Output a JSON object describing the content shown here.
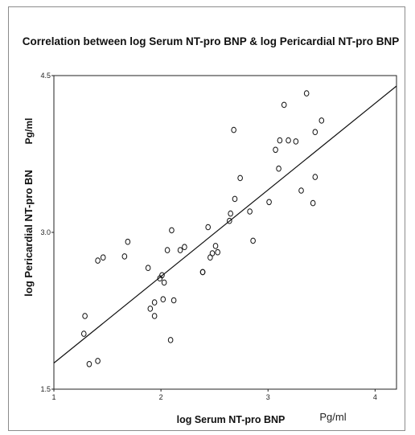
{
  "chart_data": {
    "type": "scatter",
    "title": "Correlation between log Serum NT-pro BNP & log Pericardial NT-pro BNP",
    "xlabel": "log Serum NT-pro BNP",
    "ylabel": "log Pericardial NT-pro BN",
    "x_unit": "Pg/ml",
    "y_unit": "Pg/ml",
    "xlim": [
      1,
      4.2
    ],
    "ylim": [
      1.5,
      4.5
    ],
    "x_ticks": [
      "1",
      "2",
      "3",
      "4"
    ],
    "y_ticks": [
      "1.5",
      "3.0",
      "4.5"
    ],
    "grid": false,
    "fit_line": {
      "x": [
        1,
        4.2
      ],
      "y": [
        1.75,
        4.4
      ]
    },
    "points": [
      {
        "x": 1.29,
        "y": 2.2
      },
      {
        "x": 1.28,
        "y": 2.03
      },
      {
        "x": 1.33,
        "y": 1.74
      },
      {
        "x": 1.41,
        "y": 1.77
      },
      {
        "x": 1.41,
        "y": 2.73
      },
      {
        "x": 1.46,
        "y": 2.76
      },
      {
        "x": 1.66,
        "y": 2.77
      },
      {
        "x": 1.69,
        "y": 2.91
      },
      {
        "x": 1.88,
        "y": 2.66
      },
      {
        "x": 1.9,
        "y": 2.27
      },
      {
        "x": 1.94,
        "y": 2.33
      },
      {
        "x": 1.94,
        "y": 2.2
      },
      {
        "x": 1.99,
        "y": 2.56
      },
      {
        "x": 2.01,
        "y": 2.59
      },
      {
        "x": 2.02,
        "y": 2.36
      },
      {
        "x": 2.03,
        "y": 2.52
      },
      {
        "x": 2.06,
        "y": 2.83
      },
      {
        "x": 2.09,
        "y": 1.97
      },
      {
        "x": 2.1,
        "y": 3.02
      },
      {
        "x": 2.12,
        "y": 2.35
      },
      {
        "x": 2.18,
        "y": 2.83
      },
      {
        "x": 2.22,
        "y": 2.86
      },
      {
        "x": 2.39,
        "y": 2.62
      },
      {
        "x": 2.39,
        "y": 2.62
      },
      {
        "x": 2.44,
        "y": 3.05
      },
      {
        "x": 2.46,
        "y": 2.76
      },
      {
        "x": 2.48,
        "y": 2.8
      },
      {
        "x": 2.51,
        "y": 2.87
      },
      {
        "x": 2.53,
        "y": 2.81
      },
      {
        "x": 2.64,
        "y": 3.11
      },
      {
        "x": 2.65,
        "y": 3.18
      },
      {
        "x": 2.68,
        "y": 3.98
      },
      {
        "x": 2.69,
        "y": 3.32
      },
      {
        "x": 2.74,
        "y": 3.52
      },
      {
        "x": 2.83,
        "y": 3.2
      },
      {
        "x": 2.86,
        "y": 2.92
      },
      {
        "x": 3.01,
        "y": 3.29
      },
      {
        "x": 3.07,
        "y": 3.79
      },
      {
        "x": 3.1,
        "y": 3.61
      },
      {
        "x": 3.11,
        "y": 3.88
      },
      {
        "x": 3.15,
        "y": 4.22
      },
      {
        "x": 3.19,
        "y": 3.88
      },
      {
        "x": 3.26,
        "y": 3.87
      },
      {
        "x": 3.31,
        "y": 3.4
      },
      {
        "x": 3.36,
        "y": 4.33
      },
      {
        "x": 3.42,
        "y": 3.28
      },
      {
        "x": 3.44,
        "y": 3.53
      },
      {
        "x": 3.44,
        "y": 3.96
      },
      {
        "x": 3.5,
        "y": 4.07
      }
    ]
  }
}
